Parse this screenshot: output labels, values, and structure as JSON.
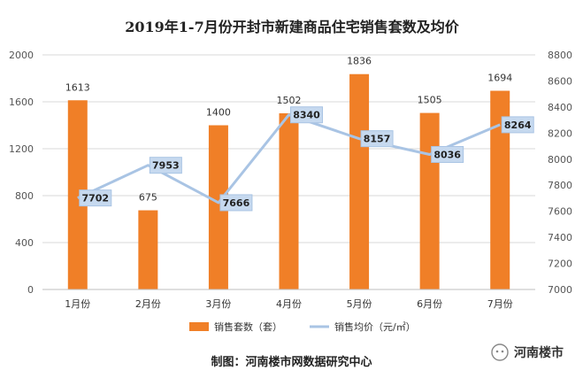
{
  "chart_data": {
    "type": "bar+line",
    "title": "2019年1-7月份开封市新建商品住宅销售套数及均价",
    "categories": [
      "1月份",
      "2月份",
      "3月份",
      "4月份",
      "5月份",
      "6月份",
      "7月份"
    ],
    "series": [
      {
        "name": "销售套数（套）",
        "type": "bar",
        "axis": "left",
        "color": "#F07F27",
        "values": [
          1613,
          675,
          1400,
          1502,
          1836,
          1505,
          1694
        ]
      },
      {
        "name": "销售均价（元/㎡）",
        "type": "line",
        "axis": "right",
        "color": "#A9C4E4",
        "values": [
          7702,
          7953,
          7666,
          8340,
          8157,
          8036,
          8264
        ]
      }
    ],
    "y_left": {
      "min": 0,
      "max": 2000,
      "ticks": [
        "0",
        "400",
        "800",
        "1200",
        "1600",
        "2000"
      ]
    },
    "y_right": {
      "min": 7000,
      "max": 8800,
      "ticks": [
        "7000",
        "7200",
        "7400",
        "7600",
        "7800",
        "8000",
        "8200",
        "8400",
        "8600",
        "8800"
      ]
    },
    "grid": true,
    "legend_position": "bottom"
  },
  "footer": {
    "text": "制图：河南楼市网数据研究中心"
  },
  "brand": {
    "text": "河南楼市"
  }
}
